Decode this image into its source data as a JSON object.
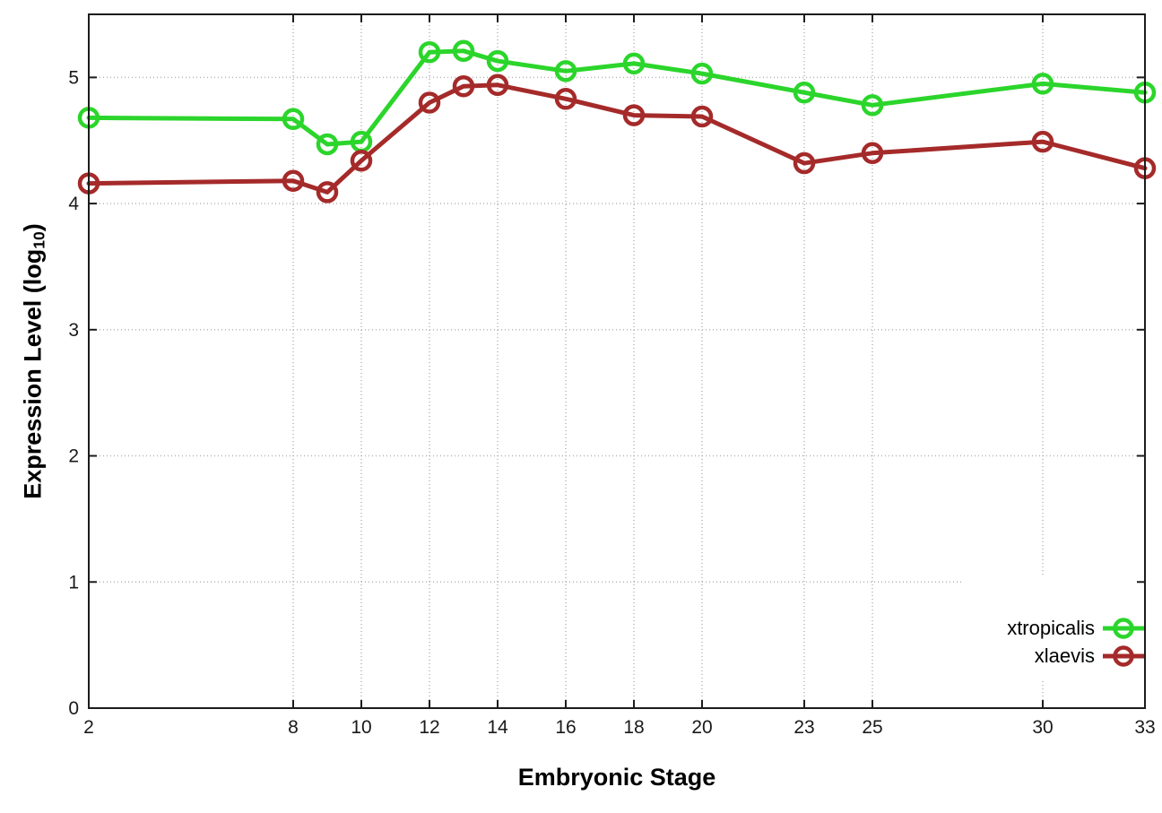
{
  "figure": {
    "xlabel": "Embryonic Stage",
    "ylabel_main": "Expression Level (log",
    "ylabel_sub": "10",
    "ylabel_close": ")"
  },
  "chart_data": {
    "type": "line",
    "title": "",
    "xlabel": "Embryonic Stage",
    "ylabel": "Expression Level (log10)",
    "x": [
      2,
      8,
      9,
      10,
      12,
      13,
      14,
      16,
      18,
      20,
      23,
      25,
      30,
      33
    ],
    "series": [
      {
        "name": "xtropicalis",
        "color": "#2bd52b",
        "marker": "open-circle",
        "values": [
          4.68,
          4.67,
          4.47,
          4.49,
          5.2,
          5.21,
          5.13,
          5.05,
          5.11,
          5.03,
          4.88,
          4.78,
          4.95,
          4.88
        ]
      },
      {
        "name": "xlaevis",
        "color": "#a52a2a",
        "marker": "open-circle",
        "values": [
          4.16,
          4.18,
          4.09,
          4.34,
          4.8,
          4.93,
          4.94,
          4.83,
          4.7,
          4.69,
          4.32,
          4.4,
          4.49,
          4.28
        ]
      }
    ],
    "xticks": [
      2,
      8,
      10,
      12,
      14,
      16,
      18,
      20,
      23,
      25,
      30,
      33
    ],
    "yticks": [
      0,
      1,
      2,
      3,
      4,
      5
    ],
    "xlim": [
      2,
      33
    ],
    "ylim": [
      0,
      5.5
    ],
    "grid": true,
    "grid_style": "dotted",
    "legend_position": "bottom-right",
    "legend_opaque": true,
    "background": "#ffffff",
    "axis_color": "#1c1c1c",
    "grid_color": "#b3b3b3",
    "text_color": "#1a1a1a"
  }
}
